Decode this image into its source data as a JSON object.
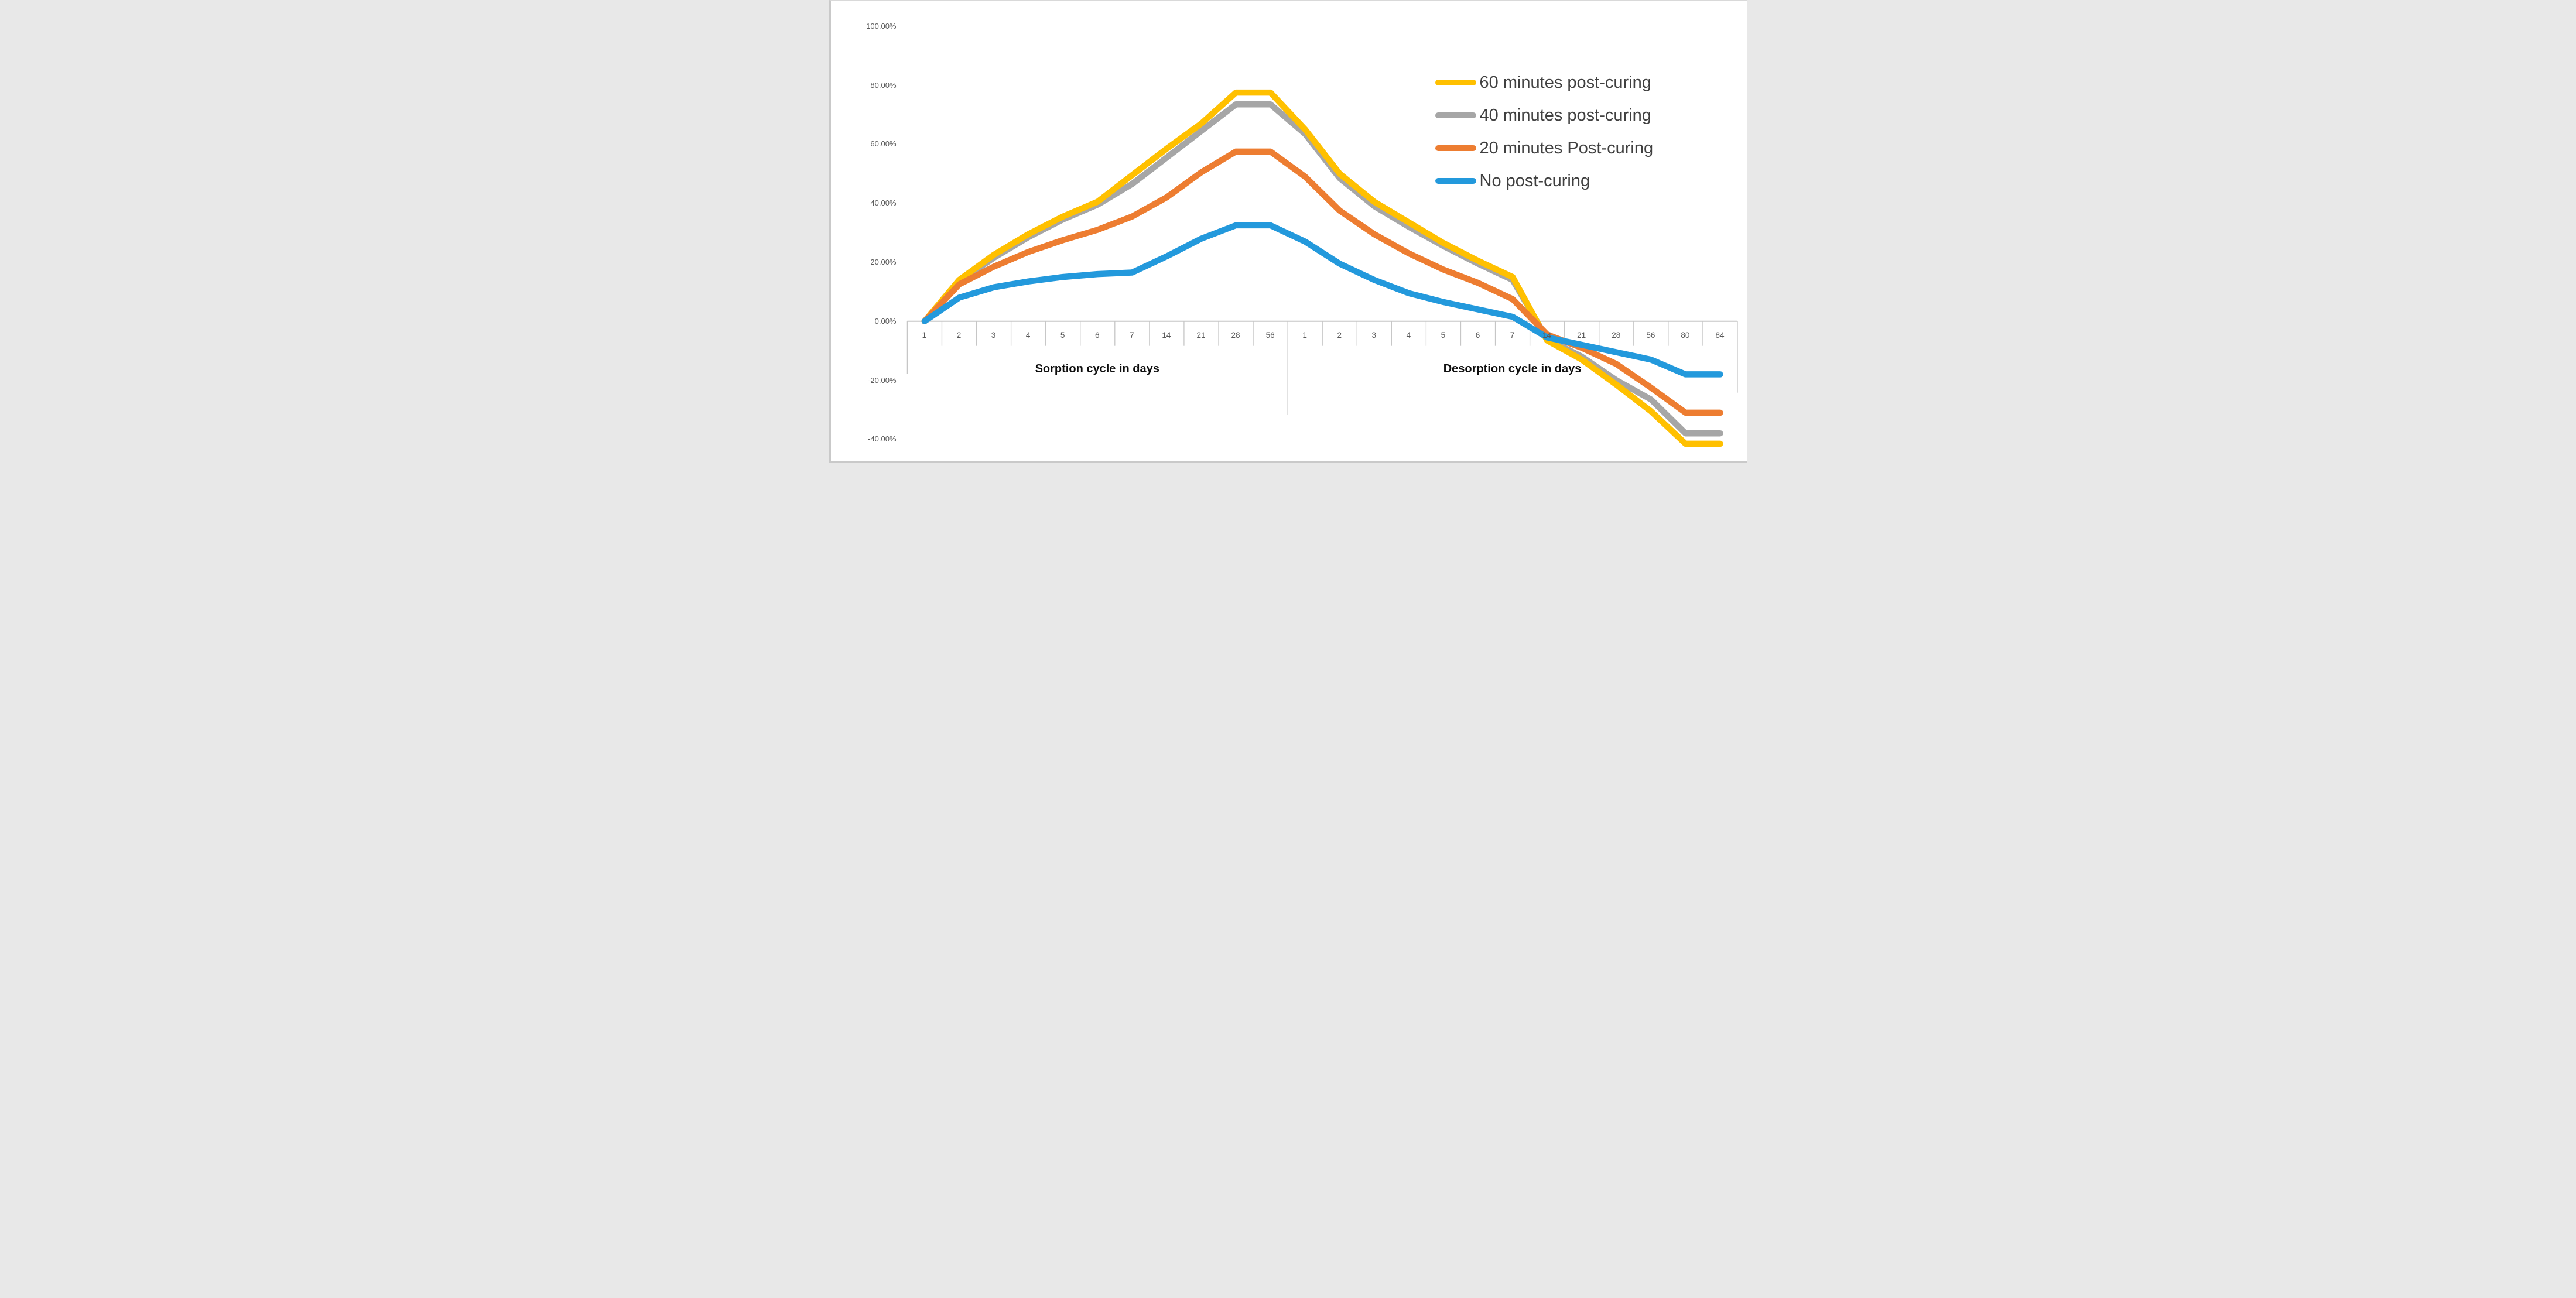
{
  "window": {
    "background": "#ffffff",
    "border_color": "#d9d9d9",
    "axis_line_color": "#c6c6c6",
    "tick_label_color": "#595959",
    "legend_text_color": "#404040"
  },
  "chart_data": {
    "type": "line",
    "title": "",
    "xlabel": "",
    "ylabel": "",
    "y_axis": {
      "tick_labels": [
        "100.00%",
        "80.00%",
        "60.00%",
        "40.00%",
        "20.00%",
        "0.00%",
        "-20.00%",
        "-40.00%"
      ],
      "tick_values": [
        100,
        80,
        60,
        40,
        20,
        0,
        -20,
        -40
      ],
      "min": -48,
      "max": 103,
      "format": "percent",
      "gridlines": false
    },
    "x_axis": {
      "categories": [
        "1",
        "2",
        "3",
        "4",
        "5",
        "6",
        "7",
        "14",
        "21",
        "28",
        "56",
        "1",
        "2",
        "3",
        "4",
        "5",
        "6",
        "7",
        "14",
        "21",
        "28",
        "56",
        "80",
        "84"
      ],
      "groups": [
        {
          "label": "Sorption cycle in days",
          "start": 0,
          "end": 10
        },
        {
          "label": "Desorption cycle in days",
          "start": 11,
          "end": 23
        }
      ]
    },
    "series": [
      {
        "name": "60 minutes post-curing",
        "color": "#FFC000",
        "values": [
          0,
          14,
          22.5,
          29.5,
          35.5,
          40.5,
          49.5,
          58.5,
          67,
          77.5,
          77.5,
          65,
          50,
          40.5,
          33.5,
          26.5,
          20.5,
          15,
          -6.5,
          -13,
          -21.5,
          -30.5,
          -41.5,
          -41.5
        ]
      },
      {
        "name": "40 minutes post-curing",
        "color": "#A6A6A6",
        "values": [
          0,
          13.5,
          21.5,
          28.5,
          34.5,
          39.5,
          46.5,
          55.5,
          64.5,
          73.5,
          73.5,
          63.5,
          48.5,
          39,
          32,
          25.5,
          19.5,
          14,
          -6,
          -12,
          -20,
          -26.5,
          -38,
          -38
        ]
      },
      {
        "name": "20 minutes Post-curing",
        "color": "#ED7D31",
        "values": [
          0,
          12.5,
          18.5,
          23.5,
          27.5,
          31,
          35.5,
          42,
          50.5,
          57.5,
          57.5,
          49,
          37.5,
          29.5,
          23,
          17.5,
          13,
          7.5,
          -4.5,
          -9,
          -14.5,
          -22.5,
          -31,
          -31
        ]
      },
      {
        "name": "No post-curing",
        "color": "#2399DC",
        "values": [
          0,
          8,
          11.5,
          13.5,
          15,
          16,
          16.5,
          22,
          28,
          32.5,
          32.5,
          27,
          19.5,
          14,
          9.5,
          6.5,
          4,
          1.5,
          -5.5,
          -8,
          -10.5,
          -13,
          -18,
          -18
        ]
      }
    ],
    "paint_order": [
      1,
      0,
      2,
      3
    ],
    "legend": {
      "position": "top-right"
    },
    "line_width": 10.5
  }
}
